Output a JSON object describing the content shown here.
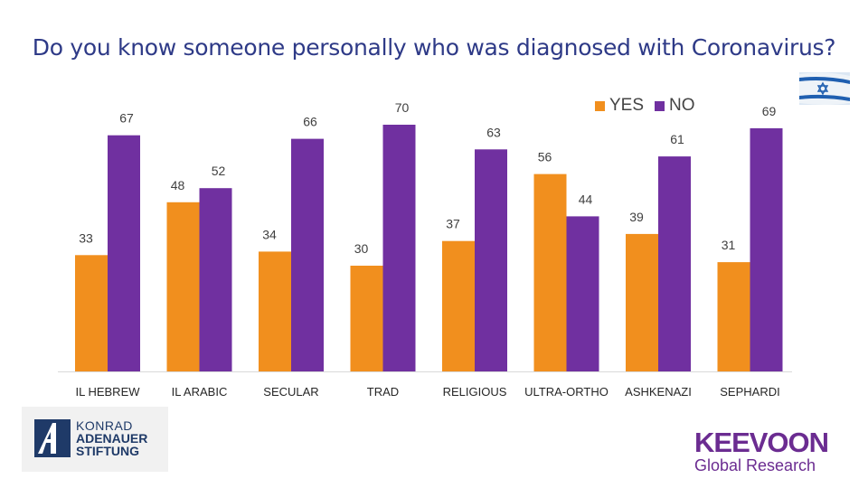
{
  "chart_data": {
    "type": "bar",
    "title": "Do you know someone personally who was diagnosed with Coronavirus?",
    "categories": [
      "IL HEBREW",
      "IL ARABIC",
      "SECULAR",
      "TRAD",
      "RELIGIOUS",
      "ULTRA-ORTHO",
      "ASHKENAZI",
      "SEPHARDI"
    ],
    "series": [
      {
        "name": "YES",
        "color": "#f18f1e",
        "values": [
          33,
          48,
          34,
          30,
          37,
          56,
          39,
          31
        ]
      },
      {
        "name": "NO",
        "color": "#7030a0",
        "values": [
          67,
          52,
          66,
          70,
          63,
          44,
          61,
          69
        ]
      }
    ],
    "ylim": [
      0,
      70
    ],
    "legend": "top-right",
    "grid": false
  },
  "logos": {
    "kas": {
      "line1": "KONRAD",
      "line2": "ADENAUER",
      "line3": "STIFTUNG"
    },
    "keevoon": {
      "line1": "KEEVOON",
      "line2": "Global Research"
    }
  },
  "icons": {
    "flag": "israel-flag-icon"
  }
}
